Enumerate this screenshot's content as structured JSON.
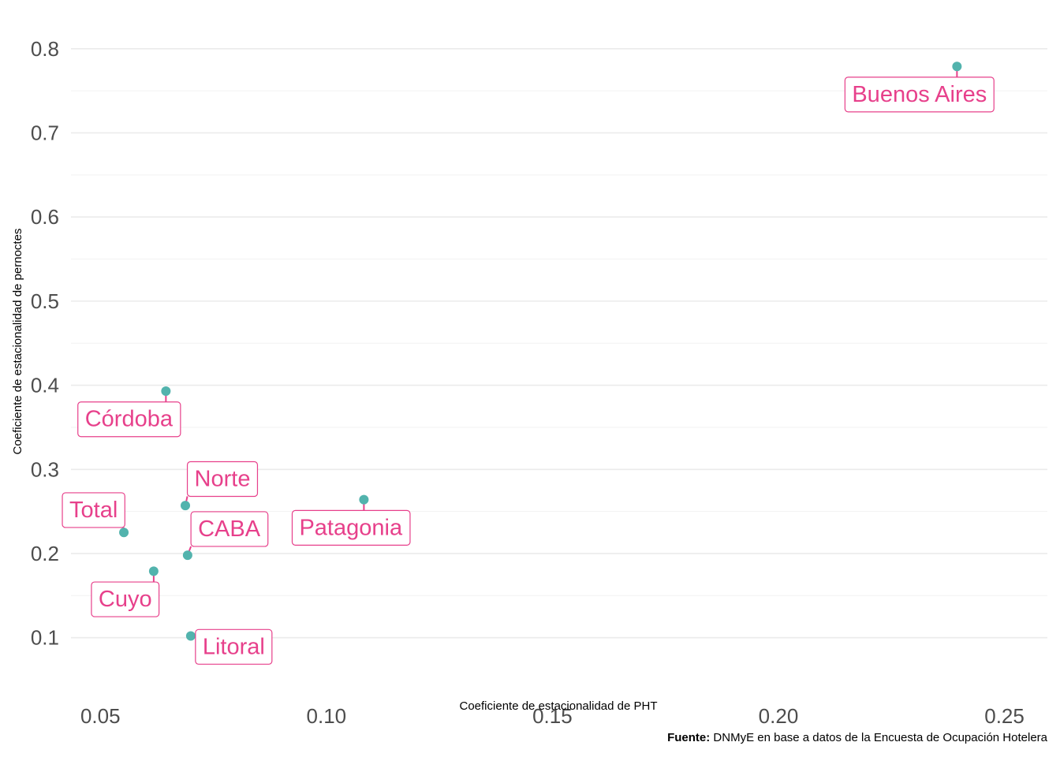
{
  "chart_data": {
    "type": "scatter",
    "title": "",
    "xlabel": "Coeficiente de estacionalidad de PHT",
    "ylabel": "Coeficiente de estacionalidad de pernoctes",
    "xlim": [
      0.0435,
      0.2595
    ],
    "ylim": [
      0.0425,
      0.8345
    ],
    "xticks": [
      0.05,
      0.1,
      0.15,
      0.2,
      0.25
    ],
    "xtick_labels": [
      "0.05",
      "0.10",
      "0.15",
      "0.20",
      "0.25"
    ],
    "yticks": [
      0.1,
      0.2,
      0.3,
      0.4,
      0.5,
      0.6,
      0.7,
      0.8
    ],
    "ytick_labels": [
      "0.1",
      "0.2",
      "0.3",
      "0.4",
      "0.5",
      "0.6",
      "0.7",
      "0.8"
    ],
    "grid": true,
    "point_color": "#52b3ad",
    "label_color": "#e7408b",
    "points": [
      {
        "label": "Buenos Aires",
        "x": 0.2395,
        "y": 0.779,
        "label_x": 0.2312,
        "label_y": 0.7465
      },
      {
        "label": "Córdoba",
        "x": 0.0645,
        "y": 0.393,
        "label_x": 0.0563,
        "label_y": 0.3605
      },
      {
        "label": "Norte",
        "x": 0.0688,
        "y": 0.257,
        "label_x": 0.077,
        "label_y": 0.2895
      },
      {
        "label": "Total",
        "x": 0.0552,
        "y": 0.225,
        "label_x": 0.0485,
        "label_y": 0.2525
      },
      {
        "label": "Patagonia",
        "x": 0.1083,
        "y": 0.264,
        "label_x": 0.1054,
        "label_y": 0.2315
      },
      {
        "label": "CABA",
        "x": 0.0693,
        "y": 0.198,
        "label_x": 0.0785,
        "label_y": 0.23
      },
      {
        "label": "Cuyo",
        "x": 0.0618,
        "y": 0.179,
        "label_x": 0.0555,
        "label_y": 0.1465
      },
      {
        "label": "Litoral",
        "x": 0.07,
        "y": 0.102,
        "label_x": 0.0795,
        "label_y": 0.09
      }
    ]
  },
  "caption": {
    "bold": "Fuente:",
    "text": " DNMyE en base a datos de la Encuesta de Ocupación Hotelera"
  }
}
